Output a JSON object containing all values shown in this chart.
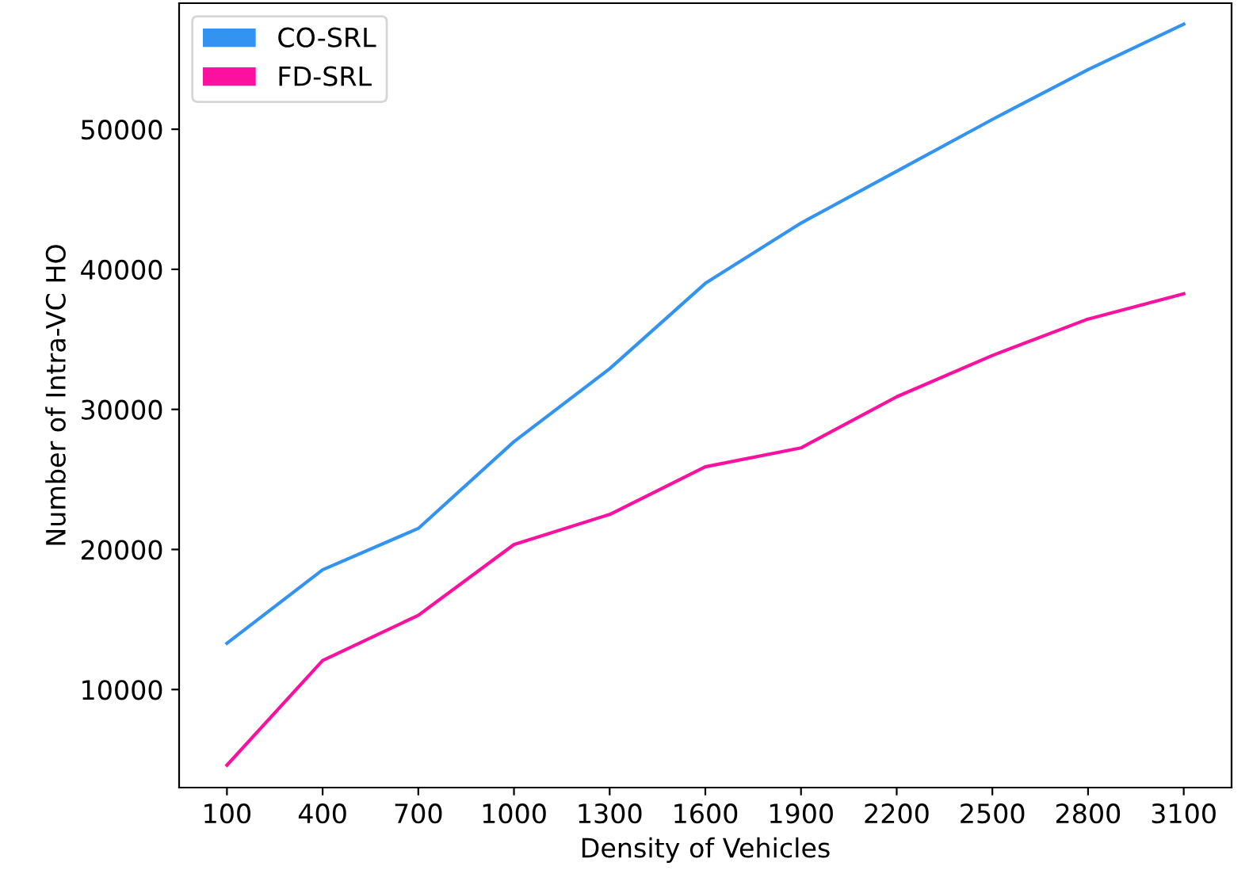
{
  "chart_data": {
    "type": "line",
    "xlabel": "Density of Vehicles",
    "ylabel": "Number of Intra-VC HO",
    "x": [
      100,
      400,
      700,
      1000,
      1300,
      1600,
      1900,
      2200,
      2500,
      2800,
      3100
    ],
    "series": [
      {
        "name": "CO-SRL",
        "color": "#3393f0",
        "values": [
          13300,
          18550,
          21500,
          27700,
          32900,
          39000,
          43300,
          47000,
          50700,
          54250,
          57500
        ]
      },
      {
        "name": "FD-SRL",
        "color": "#fc10a0",
        "values": [
          4600,
          12070,
          15300,
          20350,
          22500,
          25900,
          27250,
          30900,
          33850,
          36450,
          38250
        ]
      }
    ],
    "xlim": [
      -50,
      3250
    ],
    "xticks": [
      100,
      400,
      700,
      1000,
      1300,
      1600,
      1900,
      2200,
      2500,
      2800,
      3100
    ],
    "ylim": [
      3000,
      59000
    ],
    "yticks": [
      10000,
      20000,
      30000,
      40000,
      50000
    ],
    "legend": "upper left",
    "grid": false
  }
}
